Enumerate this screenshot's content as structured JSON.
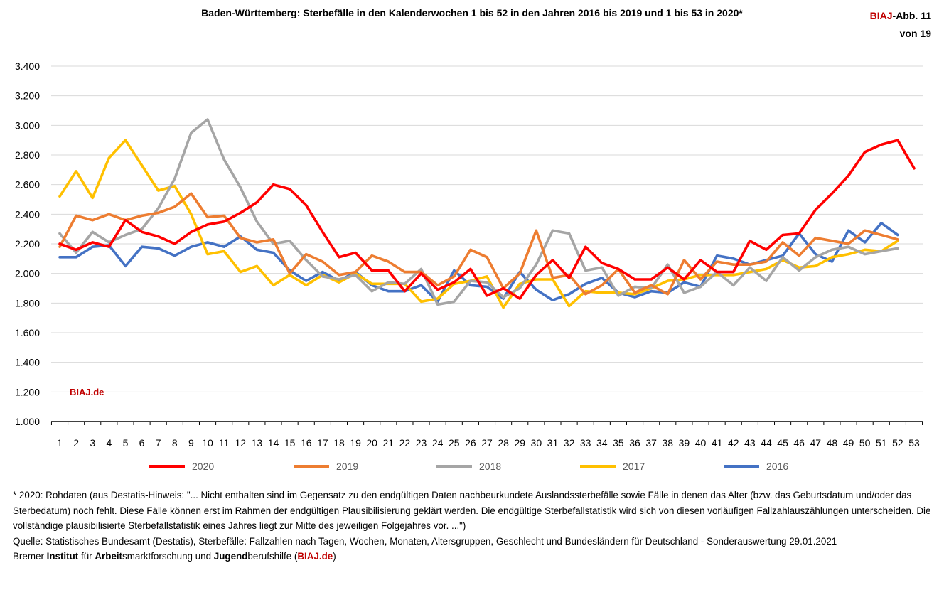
{
  "header": {
    "title": "Baden-Württemberg: Sterbefälle in den Kalenderwochen 1 bis 52 in den Jahren 2016 bis 2019 und 1 bis 53 in 2020*",
    "badge_brand": "BIAJ",
    "badge_rest": "-Abb. 11",
    "badge_line2": "von 19"
  },
  "watermark": "BIAJ.de",
  "colors": {
    "2020": "#ff0000",
    "2019": "#ed7d31",
    "2018": "#a5a5a5",
    "2017": "#ffc000",
    "2016": "#4472c4",
    "grid": "#d9d9d9",
    "brand": "#c00000"
  },
  "chart_data": {
    "type": "line",
    "title": "Baden-Württemberg: Sterbefälle in den Kalenderwochen 1 bis 52 in den Jahren 2016 bis 2019 und 1 bis 53 in 2020*",
    "xlabel": "",
    "ylabel": "",
    "x": [
      1,
      2,
      3,
      4,
      5,
      6,
      7,
      8,
      9,
      10,
      11,
      12,
      13,
      14,
      15,
      16,
      17,
      18,
      19,
      20,
      21,
      22,
      23,
      24,
      25,
      26,
      27,
      28,
      29,
      30,
      31,
      32,
      33,
      34,
      35,
      36,
      37,
      38,
      39,
      40,
      41,
      42,
      43,
      44,
      45,
      46,
      47,
      48,
      49,
      50,
      51,
      52,
      53
    ],
    "ylim": [
      1000,
      3400
    ],
    "yticks": [
      1000,
      1200,
      1400,
      1600,
      1800,
      2000,
      2200,
      2400,
      2600,
      2800,
      3000,
      3200,
      3400
    ],
    "ytick_labels": [
      "1.000",
      "1.200",
      "1.400",
      "1.600",
      "1.800",
      "2.000",
      "2.200",
      "2.400",
      "2.600",
      "2.800",
      "3.000",
      "3.200",
      "3.400"
    ],
    "grid": true,
    "legend_position": "bottom",
    "series": [
      {
        "name": "2020",
        "color": "#ff0000",
        "values": [
          2200,
          2160,
          2210,
          2180,
          2360,
          2280,
          2250,
          2200,
          2280,
          2330,
          2350,
          2410,
          2480,
          2600,
          2570,
          2460,
          2280,
          2110,
          2140,
          2020,
          2020,
          1880,
          2000,
          1890,
          1940,
          2030,
          1850,
          1900,
          1830,
          1990,
          2090,
          1970,
          2180,
          2070,
          2030,
          1960,
          1960,
          2040,
          1960,
          2090,
          2010,
          2010,
          2220,
          2160,
          2260,
          2270,
          2430,
          2540,
          2660,
          2820,
          2870,
          2900,
          2710
        ]
      },
      {
        "name": "2019",
        "color": "#ed7d31",
        "values": [
          2180,
          2390,
          2360,
          2400,
          2360,
          2390,
          2410,
          2450,
          2540,
          2380,
          2390,
          2240,
          2210,
          2230,
          2000,
          2130,
          2080,
          1990,
          2010,
          2120,
          2080,
          2010,
          2010,
          1920,
          1980,
          2160,
          2110,
          1900,
          2000,
          2290,
          1970,
          1990,
          1860,
          1920,
          2030,
          1870,
          1920,
          1860,
          2090,
          1960,
          2080,
          2060,
          2060,
          2080,
          2210,
          2120,
          2240,
          2220,
          2200,
          2290,
          2260,
          2230,
          null
        ]
      },
      {
        "name": "2018",
        "color": "#a5a5a5",
        "values": [
          2270,
          2140,
          2280,
          2210,
          2260,
          2300,
          2440,
          2640,
          2950,
          3040,
          2770,
          2580,
          2350,
          2200,
          2220,
          2090,
          1980,
          1960,
          1990,
          1880,
          1940,
          1930,
          2030,
          1790,
          1810,
          1950,
          1940,
          1840,
          1900,
          2060,
          2290,
          2270,
          2020,
          2040,
          1850,
          1910,
          1900,
          2060,
          1870,
          1910,
          2010,
          1920,
          2040,
          1950,
          2110,
          2020,
          2110,
          2160,
          2180,
          2130,
          2150,
          2170,
          null
        ]
      },
      {
        "name": "2017",
        "color": "#ffc000",
        "values": [
          2520,
          2690,
          2510,
          2780,
          2900,
          2730,
          2560,
          2590,
          2400,
          2130,
          2150,
          2010,
          2050,
          1920,
          1990,
          1920,
          1990,
          1940,
          2000,
          1930,
          1930,
          1930,
          1810,
          1830,
          1930,
          1950,
          1980,
          1770,
          1930,
          1960,
          1960,
          1780,
          1880,
          1870,
          1870,
          1860,
          1900,
          1950,
          1960,
          1990,
          1990,
          1990,
          2010,
          2030,
          2090,
          2040,
          2050,
          2110,
          2130,
          2160,
          2150,
          2220,
          null
        ]
      },
      {
        "name": "2016",
        "color": "#4472c4",
        "values": [
          2110,
          2110,
          2180,
          2190,
          2050,
          2180,
          2170,
          2120,
          2180,
          2210,
          2180,
          2250,
          2160,
          2140,
          2020,
          1950,
          2010,
          1950,
          2010,
          1920,
          1880,
          1880,
          1920,
          1810,
          2020,
          1920,
          1910,
          1830,
          2010,
          1890,
          1820,
          1860,
          1930,
          1970,
          1870,
          1840,
          1880,
          1870,
          1940,
          1910,
          2120,
          2100,
          2060,
          2090,
          2120,
          2270,
          2130,
          2080,
          2290,
          2210,
          2340,
          2260,
          null
        ]
      }
    ]
  },
  "notes": {
    "line1": "* 2020: Rohdaten (aus Destatis-Hinweis: \"... Nicht enthalten sind im Gegensatz zu den endgültigen Daten nachbeurkundete Auslandssterbefälle sowie Fälle in denen das Alter (bzw. das Geburtsdatum und/oder das Sterbedatum) noch fehlt. Diese Fälle können erst im Rahmen der endgültigen Plausibilisierung geklärt werden. Die endgültige Sterbefallstatistik wird sich von diesen vorläufigen Fallzahlauszählungen unterscheiden. Die vollständige plausibilisierte Sterbefallstatistik eines Jahres liegt zur Mitte des jeweiligen Folgejahres vor. ...\")",
    "line2": "Quelle: Statistisches Bundesamt (Destatis), Sterbefälle: Fallzahlen nach Tagen, Wochen, Monaten, Altersgruppen, Geschlecht und Bundesländern für Deutschland - Sonderauswertung 29.01.2021",
    "footer": {
      "p1": "Bremer ",
      "p2": "Institut",
      "p3": " für ",
      "p4": "Arbeit",
      "p5": "smarktforschung und ",
      "p6": "Jugend",
      "p7": "berufshilfe (",
      "p8": "BIAJ.de",
      "p9": ")"
    }
  }
}
